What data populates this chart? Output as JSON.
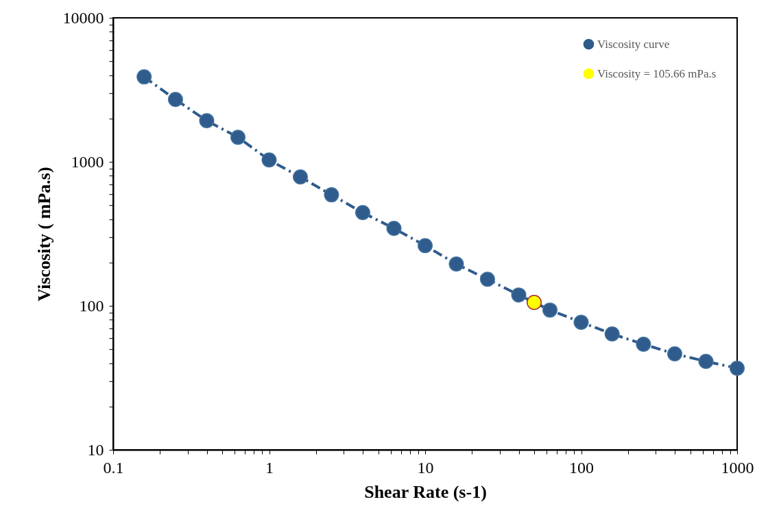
{
  "chart_data": {
    "type": "line",
    "xlabel": "Shear Rate (s-1)",
    "ylabel": "Viscosity ( mPa.s)",
    "log": "xy",
    "grid": false,
    "legend": "top right",
    "marker": "circle",
    "line_style": "dashed",
    "xlim": [
      0.1,
      1000
    ],
    "ylim": [
      10,
      10000
    ],
    "xticks": [
      0.1,
      {
        "value": 0.2,
        "label": null
      },
      {
        "value": 0.3,
        "label": null
      },
      {
        "value": 0.4,
        "label": null
      },
      {
        "value": 0.5,
        "label": null
      },
      {
        "value": 0.6,
        "label": null
      },
      {
        "value": 0.7,
        "label": null
      },
      {
        "value": 0.8,
        "label": null
      },
      {
        "value": 0.9,
        "label": null
      },
      1,
      {
        "value": 2,
        "label": null
      },
      {
        "value": 3,
        "label": null
      },
      {
        "value": 4,
        "label": null
      },
      {
        "value": 5,
        "label": null
      },
      {
        "value": 6,
        "label": null
      },
      {
        "value": 7,
        "label": null
      },
      {
        "value": 8,
        "label": null
      },
      {
        "value": 9,
        "label": null
      },
      10,
      {
        "value": 20,
        "label": null
      },
      {
        "value": 30,
        "label": null
      },
      {
        "value": 40,
        "label": null
      },
      {
        "value": 50,
        "label": null
      },
      {
        "value": 60,
        "label": null
      },
      {
        "value": 70,
        "label": null
      },
      {
        "value": 80,
        "label": null
      },
      {
        "value": 90,
        "label": null
      },
      100,
      {
        "value": 200,
        "label": null
      },
      {
        "value": 300,
        "label": null
      },
      {
        "value": 400,
        "label": null
      },
      {
        "value": 500,
        "label": null
      },
      {
        "value": 600,
        "label": null
      },
      {
        "value": 700,
        "label": null
      },
      {
        "value": 800,
        "label": null
      },
      {
        "value": 900,
        "label": null
      },
      1000
    ],
    "yticks": [
      10,
      {
        "value": 20,
        "label": null
      },
      {
        "value": 30,
        "label": null
      },
      {
        "value": 40,
        "label": null
      },
      {
        "value": 50,
        "label": null
      },
      {
        "value": 60,
        "label": null
      },
      {
        "value": 70,
        "label": null
      },
      {
        "value": 80,
        "label": null
      },
      {
        "value": 90,
        "label": null
      },
      100,
      {
        "value": 200,
        "label": null
      },
      {
        "value": 300,
        "label": null
      },
      {
        "value": 400,
        "label": null
      },
      {
        "value": 500,
        "label": null
      },
      {
        "value": 600,
        "label": null
      },
      {
        "value": 700,
        "label": null
      },
      {
        "value": 800,
        "label": null
      },
      {
        "value": 900,
        "label": null
      },
      1000,
      {
        "value": 2000,
        "label": null
      },
      {
        "value": 3000,
        "label": null
      },
      {
        "value": 4000,
        "label": null
      },
      {
        "value": 5000,
        "label": null
      },
      {
        "value": 6000,
        "label": null
      },
      {
        "value": 7000,
        "label": null
      },
      {
        "value": 8000,
        "label": null
      },
      {
        "value": 9000,
        "label": null
      },
      10000
    ],
    "series": [
      {
        "name": "Viscosity curve",
        "color": "#2f5b8d",
        "x": [
          0.158,
          0.251,
          0.398,
          0.631,
          1,
          1.585,
          2.51,
          3.98,
          6.31,
          10,
          15.85,
          25.1,
          39.8,
          63.1,
          100,
          158,
          251,
          398,
          631,
          1000
        ],
        "values": [
          3890,
          2710,
          1930,
          1480,
          1030,
          785,
          590,
          444,
          345,
          262,
          195,
          153,
          119,
          93.5,
          76.9,
          63.8,
          54.1,
          46.4,
          41.1,
          36.9
        ]
      },
      {
        "name": "Viscosity = 105.66 mPa.s",
        "type": "scatter",
        "color": "#ffff00",
        "x": [
          50
        ],
        "values": [
          105.66
        ]
      }
    ]
  }
}
